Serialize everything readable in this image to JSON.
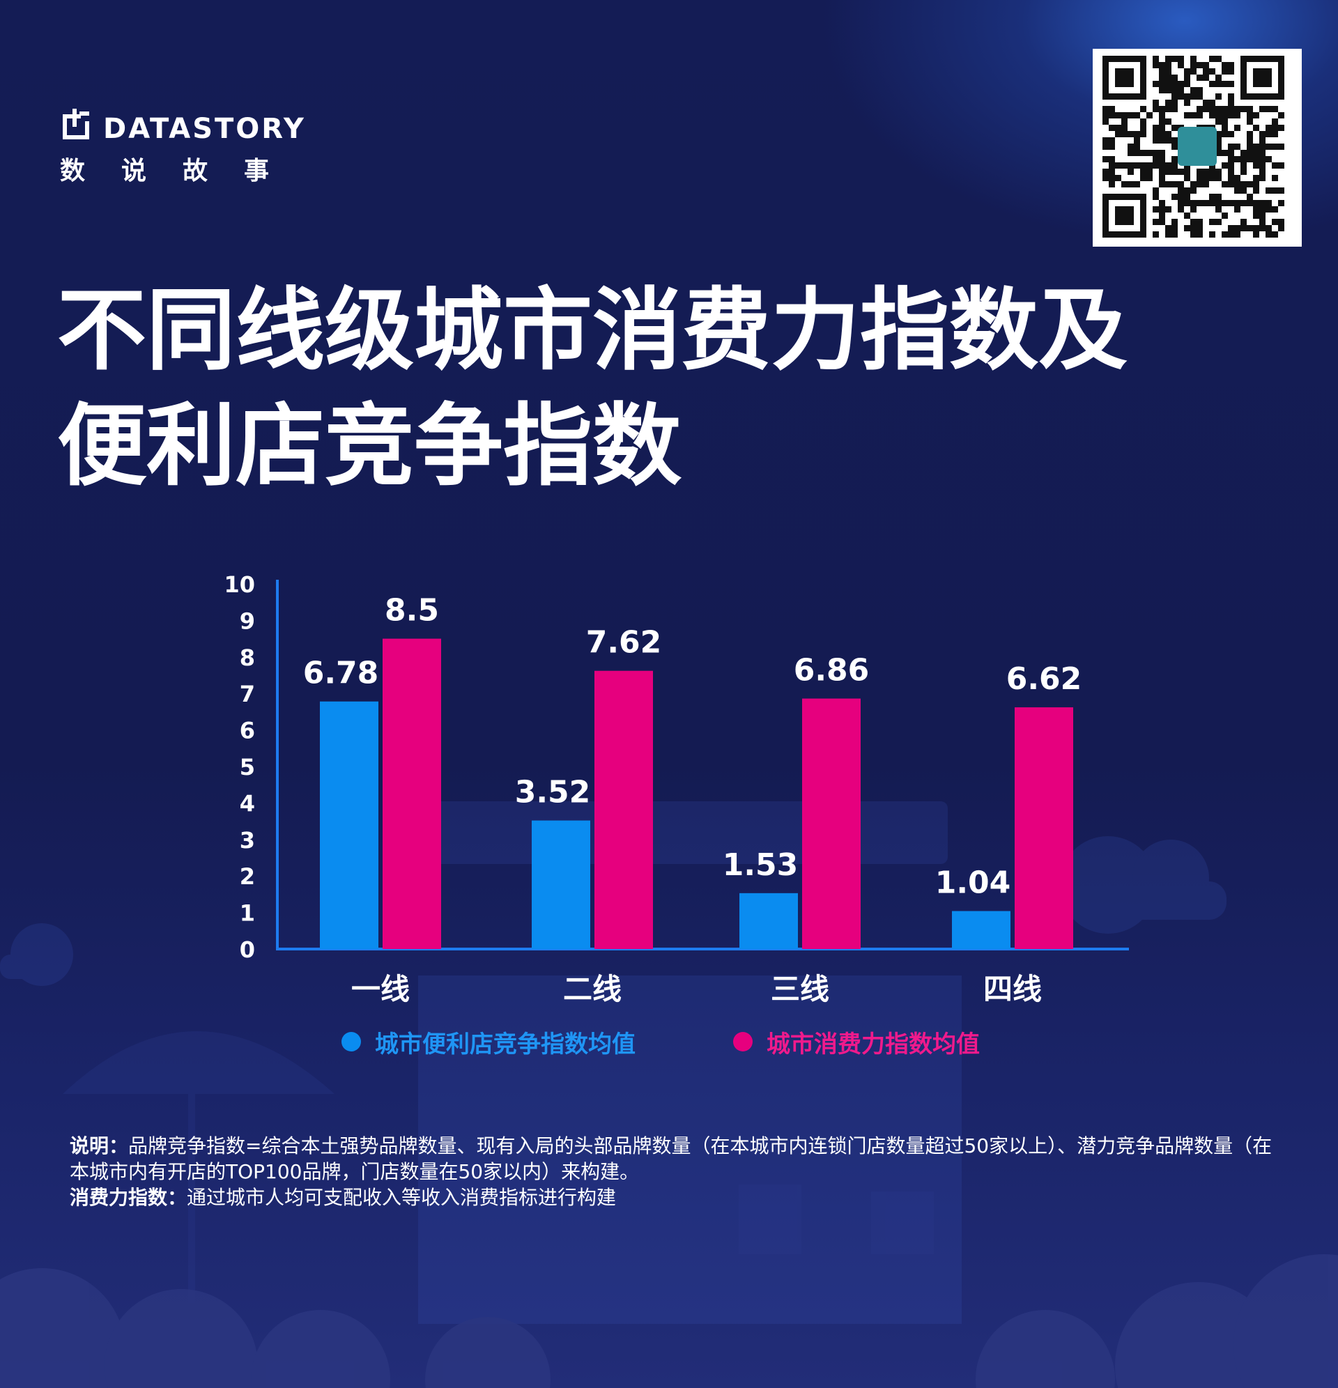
{
  "brand": {
    "name_en": "DATASTORY",
    "name_cn": "数说故事"
  },
  "title_lines": [
    "不同线级城市消费力指数及",
    "便利店竞争指数"
  ],
  "colors": {
    "blue": "#0a8cf0",
    "pink": "#e6007e",
    "axis": "#1e7cf0",
    "background": "#141c55"
  },
  "chart_data": {
    "type": "bar",
    "categories": [
      "一线",
      "二线",
      "三线",
      "四线"
    ],
    "series": [
      {
        "name": "城市便利店竞争指数均值",
        "values": [
          6.78,
          3.52,
          1.53,
          1.04
        ],
        "color": "#0a8cf0"
      },
      {
        "name": "城市消费力指数均值",
        "values": [
          8.5,
          7.62,
          6.86,
          6.62
        ],
        "color": "#e6007e"
      }
    ],
    "y_ticks": [
      0,
      1,
      2,
      3,
      4,
      5,
      6,
      7,
      8,
      9,
      10
    ],
    "ylim": [
      0,
      10
    ],
    "legend_position": "bottom",
    "grid": false
  },
  "note": {
    "label1": "说明：",
    "text1": "品牌竞争指数=综合本土强势品牌数量、现有入局的头部品牌数量（在本城市内连锁门店数量超过50家以上）、潜力竞争品牌数量（在本城市内有开店的TOP100品牌，门店数量在50家以内）来构建。",
    "label2": "消费力指数：",
    "text2": "通过城市人均可支配收入等收入消费指标进行构建"
  }
}
